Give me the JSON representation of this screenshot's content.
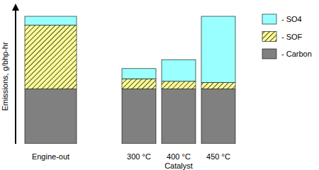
{
  "chart_data": {
    "type": "bar",
    "stacked": true,
    "legend": "right",
    "tick_labels": false,
    "y_label": "Emissions, g/bhp-hr",
    "categories": [
      "Engine-out",
      "300 °C",
      "400 °C",
      "450 °C"
    ],
    "category_groups": [
      {
        "label": "Catalyst",
        "categories": [
          "300 °C",
          "400 °C",
          "450 °C"
        ]
      }
    ],
    "ylim": [
      0,
      110
    ],
    "series": [
      {
        "name": "- Carbon",
        "color": "#808080",
        "values": [
          43,
          43,
          43,
          43
        ]
      },
      {
        "name": "- SOF",
        "color": "#ffff99",
        "values": [
          50,
          8,
          6,
          5
        ]
      },
      {
        "name": "- SO4",
        "color": "#99ffff",
        "values": [
          7,
          8,
          17,
          52
        ]
      }
    ]
  }
}
